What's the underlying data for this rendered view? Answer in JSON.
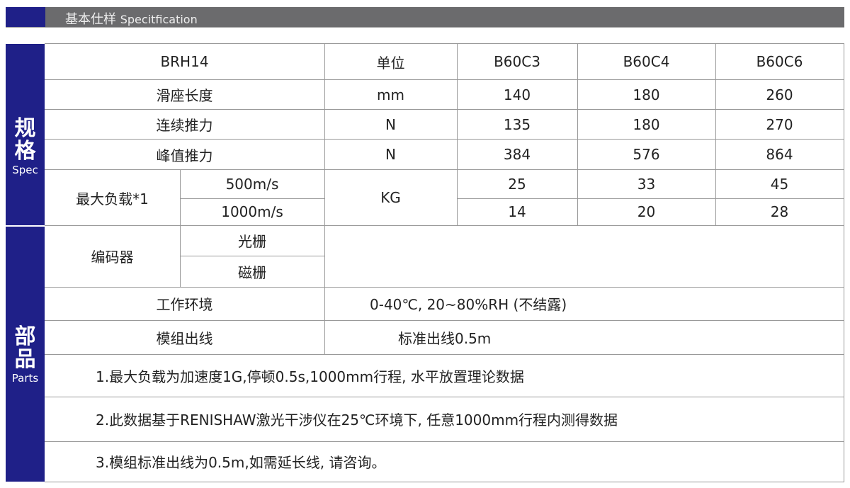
{
  "header": {
    "title_cn": "基本仕样",
    "title_en": "Specitfication"
  },
  "sidebar": {
    "spec_cn": "规格",
    "spec_en": "Spec",
    "parts_cn": "部品",
    "parts_en": "Parts"
  },
  "table": {
    "model": "BRH14",
    "unit_header": "单位",
    "columns": [
      "B60C3",
      "B60C4",
      "B60C6"
    ],
    "rows": [
      {
        "label": "滑座长度",
        "unit": "mm",
        "values": [
          "140",
          "180",
          "260"
        ]
      },
      {
        "label": "连续推力",
        "unit": "N",
        "values": [
          "135",
          "180",
          "270"
        ]
      },
      {
        "label": "峰值推力",
        "unit": "N",
        "values": [
          "384",
          "576",
          "864"
        ]
      }
    ],
    "max_load": {
      "label": "最大负载*1",
      "unit": "KG",
      "sub": [
        {
          "label": "500m/s",
          "values": [
            "25",
            "33",
            "45"
          ]
        },
        {
          "label": "1000m/s",
          "values": [
            "14",
            "20",
            "28"
          ]
        }
      ]
    },
    "encoder": {
      "label": "编码器",
      "sub": [
        "光栅",
        "磁栅"
      ]
    },
    "environment": {
      "label": "工作环境",
      "value": "0-40℃, 20~80%RH (不结露)"
    },
    "cable": {
      "label": "模组出线",
      "value": "标准出线0.5m"
    },
    "notes": [
      "1.最大负载为加速度1G,停顿0.5s,1000mm行程, 水平放置理论数据",
      "2.此数据基于RENISHAW激光干涉仪在25℃环境下, 任意1000mm行程内测得数据",
      "3.模组标准出线为0.5m,如需延长线, 请咨询。"
    ]
  }
}
